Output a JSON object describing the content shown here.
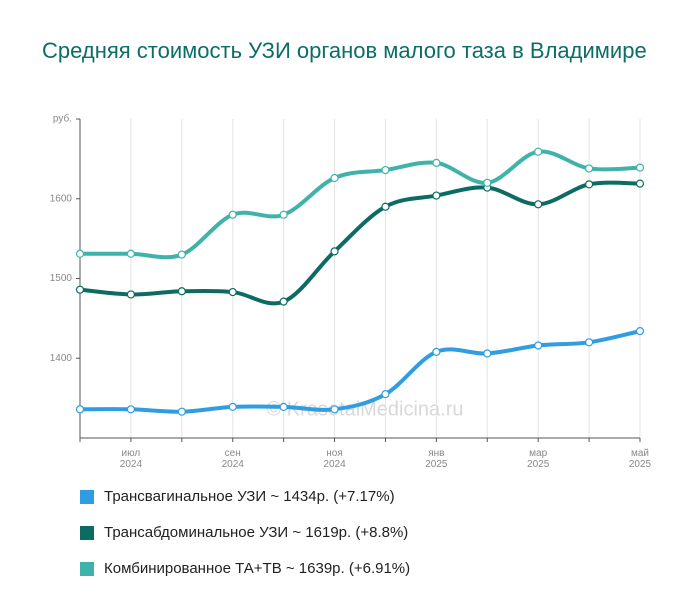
{
  "chart_data": {
    "type": "line",
    "title": "Средняя стоимость УЗИ органов малого таза в Владимире",
    "watermark": "© KrasotaiMedicina.ru",
    "categories": [
      null,
      "июл 2024",
      null,
      "сен 2024",
      null,
      "ноя 2024",
      null,
      "янв 2025",
      null,
      "мар 2025",
      null,
      "май 2025"
    ],
    "ylim": [
      1300,
      1700
    ],
    "yticks": [
      1400,
      1500,
      1600,
      {
        "value": 1700,
        "label": "руб."
      }
    ],
    "series": [
      {
        "name": "Трансвагинальное УЗИ ~ 1434р. (+7.17%)",
        "color": "#2f9de0",
        "values": [
          1336,
          1336,
          1333,
          1339,
          1339,
          1336,
          1355,
          1408,
          1406,
          1416,
          1420,
          1434
        ]
      },
      {
        "name": "Трансабдоминальное УЗИ ~ 1619р. (+8.8%)",
        "color": "#0e6b64",
        "values": [
          1486,
          1480,
          1484,
          1483,
          1471,
          1534,
          1590,
          1604,
          1614,
          1593,
          1618,
          1619
        ]
      },
      {
        "name": "Комбинированное ТА+ТВ ~ 1639р. (+6.91%)",
        "color": "#3fb3aa",
        "values": [
          1531,
          1531,
          1530,
          1580,
          1580,
          1626,
          1636,
          1645,
          1620,
          1659,
          1638,
          1639
        ]
      }
    ]
  }
}
